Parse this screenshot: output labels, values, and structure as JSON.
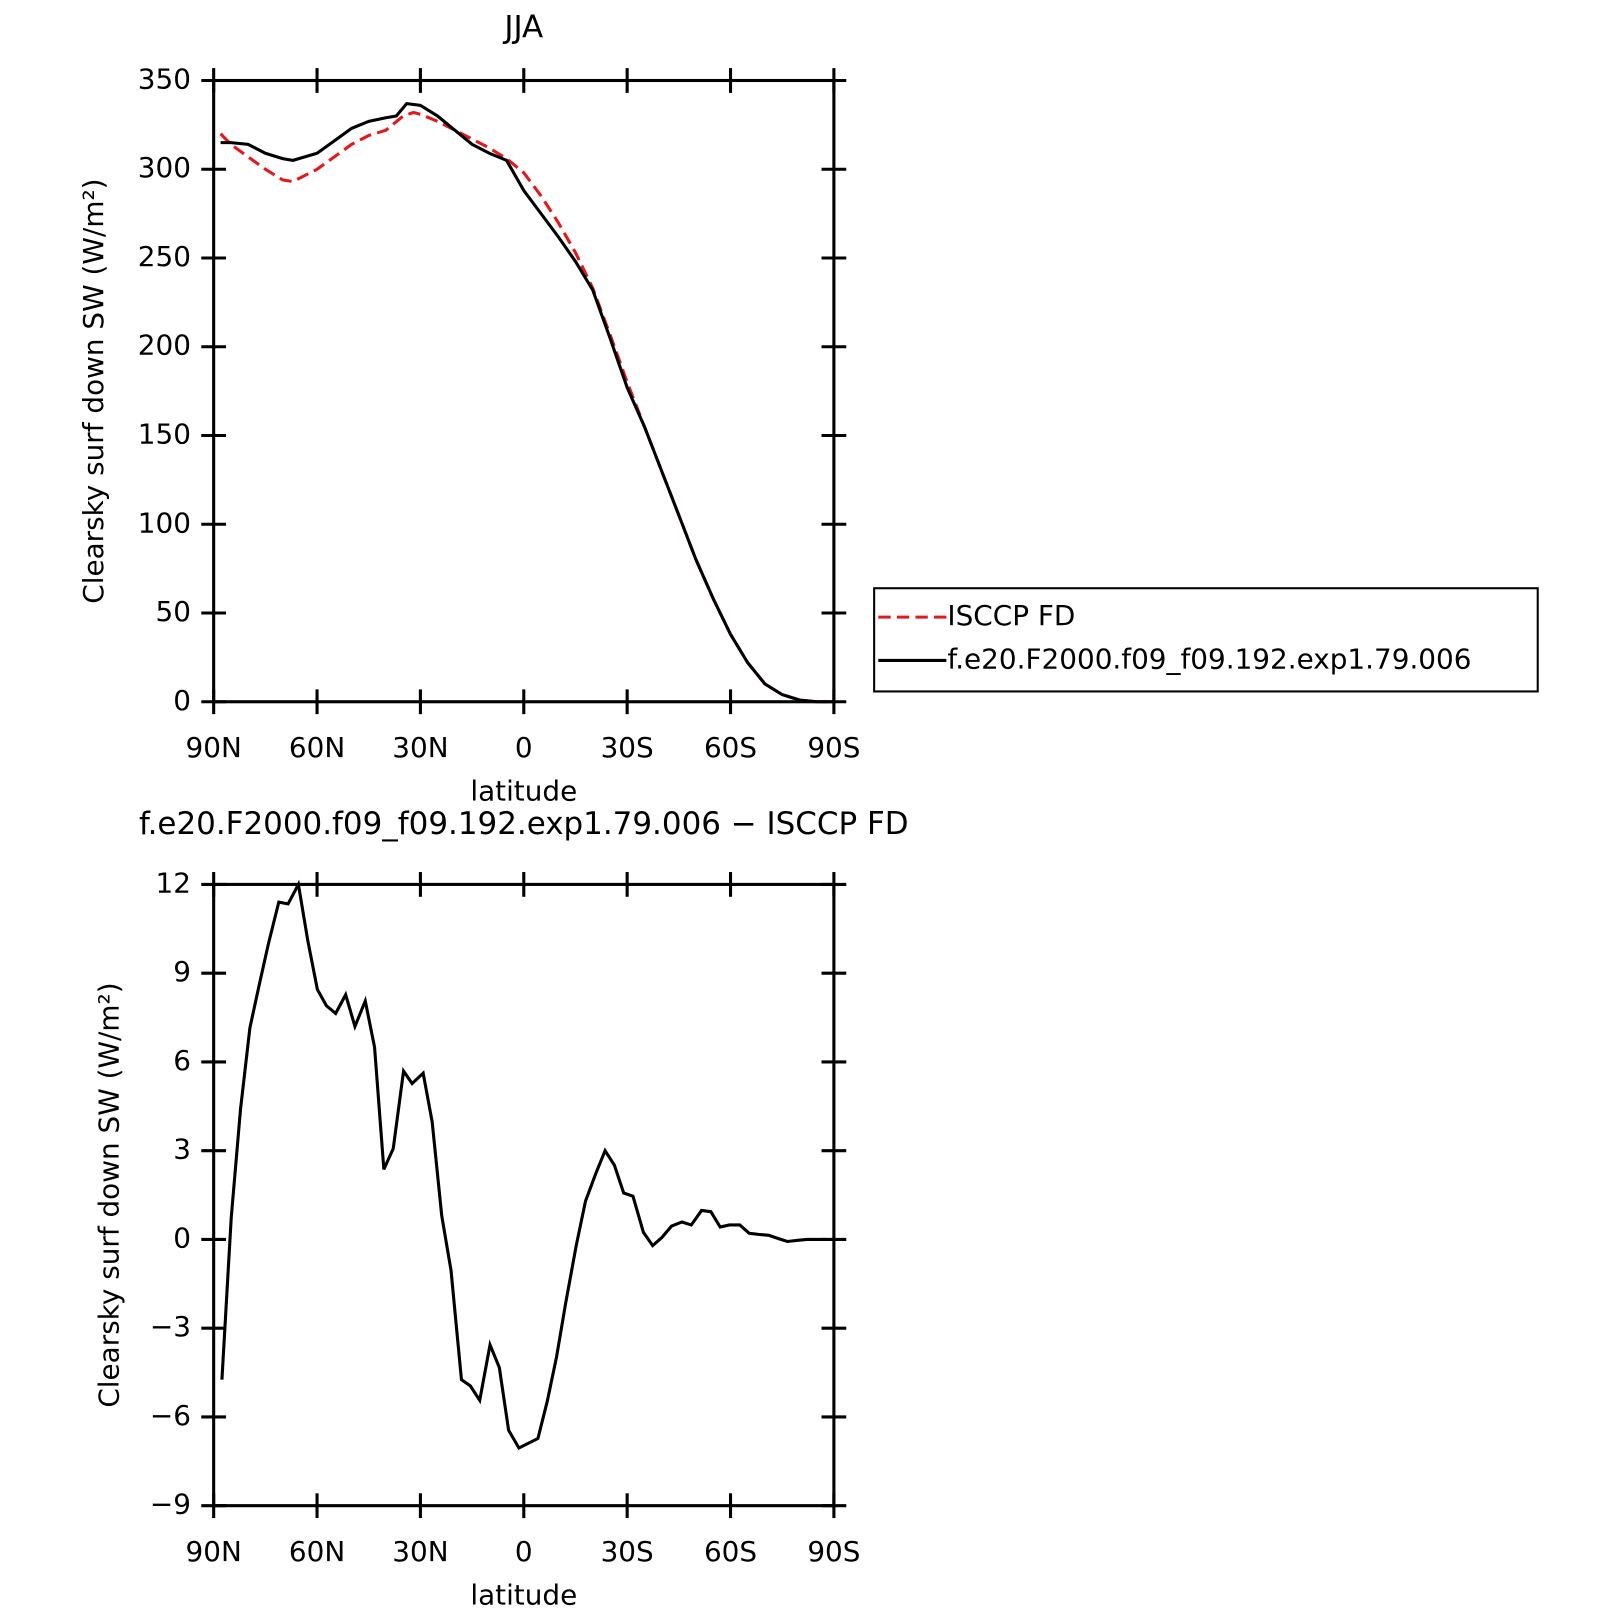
{
  "chart_data": [
    {
      "type": "line",
      "title": "JJA",
      "xlabel": "latitude",
      "ylabel": "Clearsky surf down SW (W/m²)",
      "xlim": [
        90,
        -90
      ],
      "xticks": [
        {
          "value": 90,
          "label": "90N"
        },
        {
          "value": 60,
          "label": "60N"
        },
        {
          "value": 30,
          "label": "30N"
        },
        0,
        {
          "value": -30,
          "label": "30S"
        },
        {
          "value": -60,
          "label": "60S"
        },
        {
          "value": -90,
          "label": "90S"
        }
      ],
      "ylim": [
        0,
        350
      ],
      "yticks": [
        0,
        50,
        100,
        150,
        200,
        250,
        300,
        350
      ],
      "legend": "right",
      "series": [
        {
          "name": "ISCCP FD",
          "color": "#e31a1c",
          "style": "dashed",
          "x": [
            88,
            85,
            80,
            75,
            70,
            67,
            60,
            55,
            50,
            45,
            40,
            35,
            32,
            30,
            25,
            20,
            15,
            10,
            5,
            0,
            -5,
            -10,
            -15,
            -20,
            -25,
            -30,
            -35,
            -40,
            -45,
            -50,
            -55,
            -60,
            -65,
            -70,
            -75,
            -80,
            -85,
            -88
          ],
          "values": [
            320,
            314,
            307,
            300,
            294,
            293,
            300,
            307,
            314,
            319,
            322,
            330,
            332,
            331,
            327,
            322,
            317,
            312,
            306,
            298,
            285,
            270,
            253,
            233,
            207,
            180,
            155,
            130,
            105,
            80,
            58,
            38,
            22,
            10,
            4,
            1,
            0,
            0
          ]
        },
        {
          "name": "f.e20.F2000.f09_f09.192.exp1.79.006",
          "color": "#000000",
          "style": "solid",
          "x": [
            88,
            85,
            80,
            75,
            70,
            67,
            60,
            55,
            50,
            45,
            40,
            37,
            34,
            30,
            25,
            20,
            15,
            10,
            5,
            0,
            -5,
            -10,
            -15,
            -20,
            -25,
            -30,
            -35,
            -40,
            -45,
            -50,
            -55,
            -60,
            -65,
            -70,
            -75,
            -80,
            -85,
            -88
          ],
          "values": [
            315,
            315,
            314,
            309,
            306,
            305,
            309,
            316,
            323,
            327,
            329,
            330,
            337,
            336,
            330,
            322,
            314,
            309,
            305,
            288,
            275,
            262,
            248,
            232,
            205,
            177,
            155,
            130,
            105,
            80,
            58,
            38,
            22,
            10,
            4,
            1,
            0,
            0
          ]
        }
      ]
    },
    {
      "type": "line",
      "title": "f.e20.F2000.f09_f09.192.exp1.79.006 − ISCCP FD",
      "xlabel": "latitude",
      "ylabel": "Clearsky surf down SW (W/m²)",
      "xlim": [
        90,
        -90
      ],
      "xticks": [
        {
          "value": 90,
          "label": "90N"
        },
        {
          "value": 60,
          "label": "60N"
        },
        {
          "value": 30,
          "label": "30N"
        },
        0,
        {
          "value": -30,
          "label": "30S"
        },
        {
          "value": -60,
          "label": "60S"
        },
        {
          "value": -90,
          "label": "90S"
        }
      ],
      "ylim": [
        -9,
        12
      ],
      "yticks": [
        {
          "value": -9,
          "label": "−9"
        },
        {
          "value": -6,
          "label": "−6"
        },
        {
          "value": -3,
          "label": "−3"
        },
        0,
        3,
        6,
        9,
        12
      ],
      "series": [
        {
          "color": "#000000",
          "style": "solid",
          "x": [
            87.6,
            84.9,
            82.2,
            79.5,
            76.8,
            74.1,
            71.1,
            68.4,
            65.4,
            62.7,
            59.9,
            57.3,
            54.6,
            51.7,
            49.0,
            46.0,
            43.3,
            40.6,
            37.9,
            34.9,
            32.4,
            29.2,
            26.6,
            23.8,
            21.1,
            18.1,
            15.5,
            12.8,
            9.8,
            7.1,
            4.4,
            1.4,
            -4.1,
            -6.8,
            -9.5,
            -12.2,
            -15.2,
            -17.9,
            -20.9,
            -23.6,
            -26.3,
            -29.0,
            -31.7,
            -34.7,
            -37.4,
            -40.1,
            -42.9,
            -45.9,
            -48.6,
            -51.6,
            -54.3,
            -57.0,
            -59.7,
            -62.7,
            -65.4,
            -68.1,
            -71.1,
            -73.8,
            -76.5,
            -79.5,
            -82.2,
            -84.9,
            -87.6
          ],
          "values": [
            -4.74,
            0.73,
            4.4,
            7.15,
            8.6,
            10.0,
            11.4,
            11.34,
            12.0,
            10.1,
            8.45,
            7.9,
            7.64,
            8.27,
            7.2,
            8.06,
            6.5,
            2.37,
            3.07,
            5.69,
            5.27,
            5.62,
            3.98,
            0.8,
            -1.05,
            -4.74,
            -4.95,
            -5.44,
            -3.56,
            -4.33,
            -6.45,
            -7.05,
            -6.73,
            -5.48,
            -3.98,
            -2.13,
            -0.21,
            1.29,
            2.23,
            3.0,
            2.51,
            1.57,
            1.46,
            0.24,
            -0.21,
            0.07,
            0.45,
            0.59,
            0.49,
            0.98,
            0.94,
            0.42,
            0.49,
            0.49,
            0.21,
            0.17,
            0.14,
            0.03,
            -0.07,
            -0.03,
            0,
            0,
            0
          ]
        }
      ]
    }
  ]
}
